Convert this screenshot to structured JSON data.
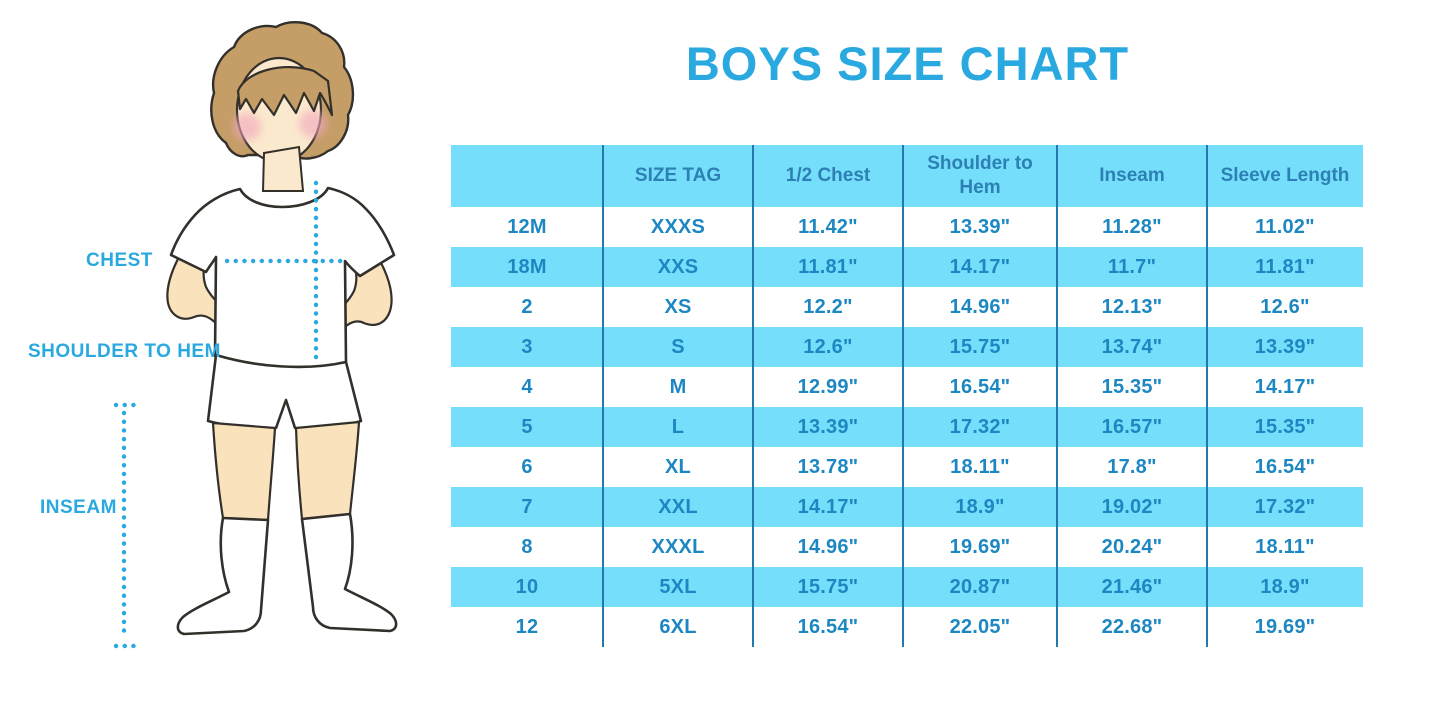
{
  "title": "BOYS SIZE CHART",
  "colors": {
    "accent": "#29A9E0",
    "row-blue": "#75DFFB",
    "header-text": "#2C80B4",
    "cell-text": "#1D87C2",
    "divider": "#2379AC",
    "skin": "#FBE9CD",
    "skin2": "#FAE3BC",
    "hair": "#C49D67",
    "blush": "#F2A8BE",
    "outline": "#33302B"
  },
  "figure": {
    "labels": {
      "chest": "CHEST",
      "shoulder_to_hem": "SHOULDER TO HEM",
      "inseam": "INSEAM"
    }
  },
  "chart_data": {
    "type": "table",
    "title": "BOYS SIZE CHART",
    "columns": [
      "",
      "SIZE TAG",
      "1/2 Chest",
      "Shoulder to Hem",
      "Inseam",
      "Sleeve Length"
    ],
    "rows": [
      [
        "12M",
        "XXXS",
        "11.42\"",
        "13.39\"",
        "11.28\"",
        "11.02\""
      ],
      [
        "18M",
        "XXS",
        "11.81\"",
        "14.17\"",
        "11.7\"",
        "11.81\""
      ],
      [
        "2",
        "XS",
        "12.2\"",
        "14.96\"",
        "12.13\"",
        "12.6\""
      ],
      [
        "3",
        "S",
        "12.6\"",
        "15.75\"",
        "13.74\"",
        "13.39\""
      ],
      [
        "4",
        "M",
        "12.99\"",
        "16.54\"",
        "15.35\"",
        "14.17\""
      ],
      [
        "5",
        "L",
        "13.39\"",
        "17.32\"",
        "16.57\"",
        "15.35\""
      ],
      [
        "6",
        "XL",
        "13.78\"",
        "18.11\"",
        "17.8\"",
        "16.54\""
      ],
      [
        "7",
        "XXL",
        "14.17\"",
        "18.9\"",
        "19.02\"",
        "17.32\""
      ],
      [
        "8",
        "XXXL",
        "14.96\"",
        "19.69\"",
        "20.24\"",
        "18.11\""
      ],
      [
        "10",
        "5XL",
        "15.75\"",
        "20.87\"",
        "21.46\"",
        "18.9\""
      ],
      [
        "12",
        "6XL",
        "16.54\"",
        "22.05\"",
        "22.68\"",
        "19.69\""
      ]
    ],
    "layout": {
      "striping": "alternating white/light-blue rows, light-blue header",
      "grid": "vertical dividers only"
    }
  }
}
